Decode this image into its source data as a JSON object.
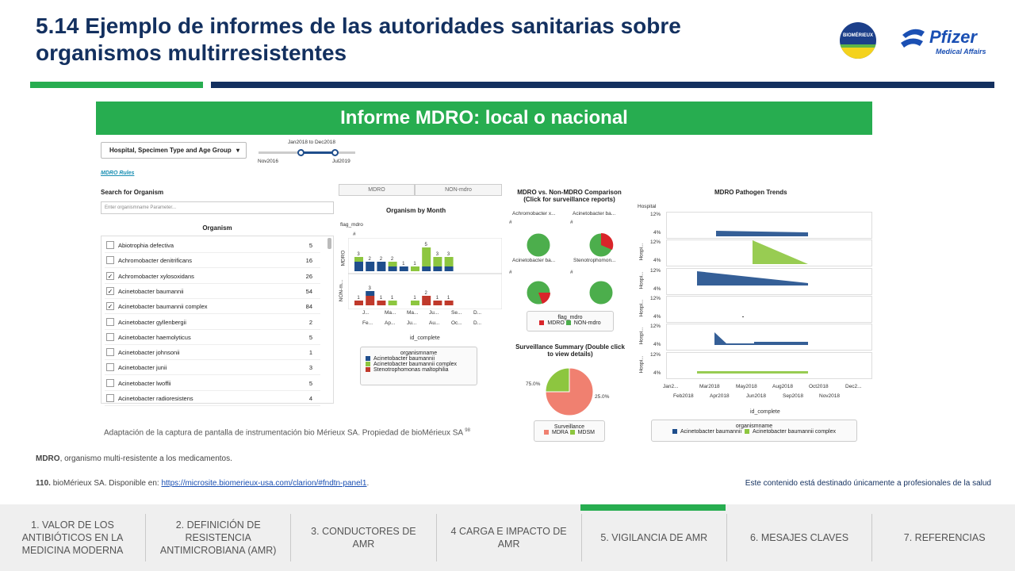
{
  "title": "5.14 Ejemplo de informes de las autoridades sanitarias sobre organismos multirresistentes",
  "logos": {
    "biomerieux": "BIOMÉRIEUX",
    "pfizer": "Pfizer",
    "pfizer_sub": "Medical Affairs"
  },
  "banner": "Informe MDRO: local o nacional",
  "dashboard": {
    "dropdown": "Hospital, Specimen Type and Age Group",
    "slider": {
      "range_label": "Jan2018 to Dec2018",
      "min_label": "Nov2016",
      "max_label": "Jul2019"
    },
    "mdro_rules": "MDRO Rules",
    "search_label": "Search for Organism",
    "search_placeholder": "Enter organismname Parameter...",
    "organism_header": "Organism",
    "organisms": [
      {
        "name": "Abiotrophia defectiva",
        "count": "5",
        "checked": false
      },
      {
        "name": "Achromobacter denitrificans",
        "count": "16",
        "checked": false
      },
      {
        "name": "Achromobacter xylosoxidans",
        "count": "26",
        "checked": true
      },
      {
        "name": "Acinetobacter baumannii",
        "count": "54",
        "checked": true
      },
      {
        "name": "Acinetobacter baumannii complex",
        "count": "84",
        "checked": true
      },
      {
        "name": "Acinetobacter gyllenbergii",
        "count": "2",
        "checked": false
      },
      {
        "name": "Acinetobacter haemolyticus",
        "count": "5",
        "checked": false
      },
      {
        "name": "Acinetobacter johnsonii",
        "count": "1",
        "checked": false
      },
      {
        "name": "Acinetobacter junii",
        "count": "3",
        "checked": false
      },
      {
        "name": "Acinetobacter lwoffii",
        "count": "5",
        "checked": false
      },
      {
        "name": "Acinetobacter radioresistens",
        "count": "4",
        "checked": false
      }
    ],
    "seg_mdro": "MDRO",
    "seg_non": "NON-mdro",
    "obm": {
      "title": "Organism by Month",
      "flag": "flag_mdro",
      "hash": "#",
      "row1": "MDRO",
      "row2": "NON-m...",
      "xrow1": [
        "J...",
        "Ma...",
        "Ma...",
        "Ju...",
        "Se...",
        "D..."
      ],
      "xrow2": [
        "Fe...",
        "Ap...",
        "Ju...",
        "Au...",
        "Oc...",
        "D..."
      ],
      "xlabel": "id_complete",
      "legend_title": "organismname",
      "legend": [
        "Acinetobacter baumannii",
        "Acinetobacter baumannii complex",
        "Stenotrophomonas maltophilia"
      ],
      "mdro_bars": [
        {
          "label": "3",
          "blue": 2,
          "green": 1
        },
        {
          "label": "2",
          "blue": 2,
          "green": 0
        },
        {
          "label": "2",
          "blue": 2,
          "green": 0
        },
        {
          "label": "2",
          "blue": 1,
          "green": 1
        },
        {
          "label": "1",
          "blue": 1,
          "green": 0
        },
        {
          "label": "1",
          "blue": 0,
          "green": 1
        },
        {
          "label": "5",
          "blue": 1,
          "green": 4
        },
        {
          "label": "3",
          "blue": 1,
          "green": 2
        },
        {
          "label": "3",
          "blue": 1,
          "green": 2
        }
      ],
      "non_bars": [
        {
          "label": "1",
          "red": 1,
          "green": 0
        },
        {
          "label": "3",
          "red": 2,
          "green": 0,
          "blue": 1
        },
        {
          "label": "1",
          "red": 1,
          "green": 0
        },
        {
          "label": "1",
          "red": 0,
          "green": 1
        },
        {
          "label": "",
          "red": 0,
          "green": 0
        },
        {
          "label": "1",
          "red": 0,
          "green": 1
        },
        {
          "label": "2",
          "red": 2,
          "green": 0
        },
        {
          "label": "1",
          "red": 1,
          "green": 0
        },
        {
          "label": "1",
          "red": 1,
          "green": 0
        }
      ]
    },
    "cmp": {
      "title1": "MDRO vs. Non-MDRO Comparison",
      "title2": "(Click for surveillance reports)",
      "col1": "Achromobacter x...",
      "col2": "Acinetobacter ba...",
      "row1": "Acinetobacter ba...",
      "row2": "Stenotrophomon...",
      "hash": "#",
      "legend_title": "flag_mdro",
      "legend": [
        "MDRO",
        "NON-mdro"
      ]
    },
    "surv": {
      "title1": "Surveillance Summary (Double click",
      "title2": "to view details)",
      "pct1": "75.0%",
      "pct2": "25.0%",
      "legend_title": "Surveillance",
      "legend": [
        "MDRA",
        "MDSM"
      ]
    },
    "trends": {
      "title": "MDRO Pathogen Trends",
      "hosp": "Hospital",
      "hosp_short": "Hospi...",
      "y_top": "12%",
      "y_bot": "4%",
      "x1": [
        "Jan2...",
        "Mar2018",
        "May2018",
        "Aug2018",
        "Oct2018",
        "Dec2..."
      ],
      "x2": [
        "Feb2018",
        "Apr2018",
        "Jun2018",
        "Sep2018",
        "Nov2018"
      ],
      "xlabel": "id_complete",
      "legend_title": "organismname",
      "legend": [
        "Acinetobacter baumannii",
        "Acinetobacter baumannii complex"
      ]
    }
  },
  "caption": "Adaptación de la captura de pantalla de instrumentación bio Mérieux SA. Propiedad de bioMérieux SA",
  "caption_sup": "98",
  "foot_bold": "MDRO",
  "foot_text": ", organismo multi-resistente a los medicamentos.",
  "ref_num": "110.",
  "ref_text": " bioMérieux SA. Disponible en: ",
  "ref_link": "https://microsite.biomerieux-usa.com/clarion/#fndtn-panel1",
  "ref_end": ".",
  "disclaimer": "Este contenido está destinado únicamente a profesionales de la salud",
  "nav": [
    "1. VALOR DE LOS ANTIBIÓTICOS EN LA MEDICINA MODERNA",
    "2. DEFINICIÓN DE RESISTENCIA ANTIMICROBIANA (AMR)",
    "3. CONDUCTORES DE AMR",
    "4 CARGA E IMPACTO DE AMR",
    "5. VIGILANCIA DE AMR",
    "6. MESAJES CLAVES",
    "7. REFERENCIAS"
  ],
  "colors": {
    "blue": "#1f4e8c",
    "green": "#8dc63f",
    "red": "#c0392b",
    "brand_green": "#27ad50",
    "navy": "#13305f"
  }
}
